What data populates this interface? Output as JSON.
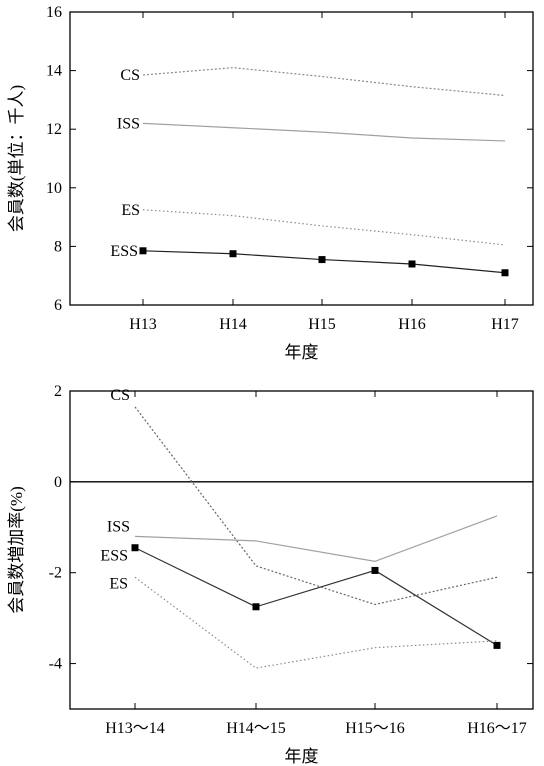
{
  "chart_data": [
    {
      "type": "line",
      "categories": [
        "H13",
        "H14",
        "H15",
        "H16",
        "H17"
      ],
      "xlabel": "年度",
      "ylabel": "会員数(単位：千人)",
      "ylim": [
        6,
        16
      ],
      "yticks": [
        6,
        8,
        10,
        12,
        14,
        16
      ],
      "grid": false,
      "legend": "inline labels at left end of each line",
      "series": [
        {
          "name": "CS",
          "values": [
            13.85,
            14.1,
            13.8,
            13.45,
            13.15
          ],
          "color": "#8a8a8a",
          "dash": "2,2",
          "marker": "none"
        },
        {
          "name": "ISS",
          "values": [
            12.2,
            12.05,
            11.9,
            11.7,
            11.6
          ],
          "color": "#a0a0a0",
          "dash": "none",
          "marker": "none"
        },
        {
          "name": "ES",
          "values": [
            9.25,
            9.05,
            8.7,
            8.4,
            8.05
          ],
          "color": "#8a8a8a",
          "dash": "1.5,2.5",
          "marker": "none"
        },
        {
          "name": "ESS",
          "values": [
            7.85,
            7.75,
            7.55,
            7.4,
            7.1
          ],
          "color": "#222222",
          "dash": "none",
          "marker": "square"
        }
      ]
    },
    {
      "type": "line",
      "categories": [
        "H13〜14",
        "H14〜15",
        "H15〜16",
        "H16〜17"
      ],
      "xlabel": "年度",
      "ylabel": "会員数増加率(%)",
      "ylim": [
        -5,
        2
      ],
      "yticks": [
        -4,
        -2,
        0,
        2
      ],
      "zero_line": true,
      "grid": false,
      "legend": "inline labels at left end of each line",
      "series": [
        {
          "name": "CS",
          "values": [
            1.65,
            -1.85,
            -2.7,
            -2.1
          ],
          "color": "#666666",
          "dash": "2,2",
          "marker": "none"
        },
        {
          "name": "ISS",
          "values": [
            -1.2,
            -1.3,
            -1.75,
            -0.75
          ],
          "color": "#a0a0a0",
          "dash": "none",
          "marker": "none"
        },
        {
          "name": "ESS",
          "values": [
            -1.45,
            -2.75,
            -1.95,
            -3.6
          ],
          "color": "#333333",
          "dash": "none",
          "marker": "square"
        },
        {
          "name": "ES",
          "values": [
            -2.1,
            -4.1,
            -3.65,
            -3.5
          ],
          "color": "#8a8a8a",
          "dash": "1.5,2.5",
          "marker": "none"
        }
      ]
    }
  ]
}
